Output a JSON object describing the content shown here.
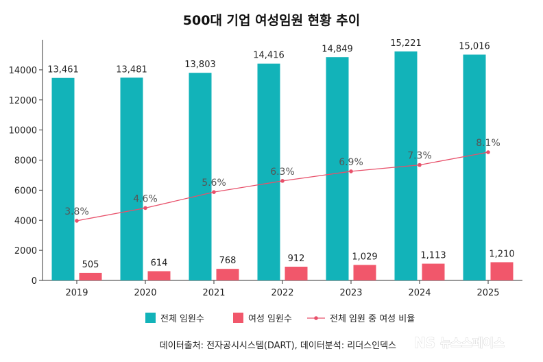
{
  "chart_data": {
    "type": "bar",
    "title": "500대 기업 여성임원 현황 추이",
    "categories": [
      "2019",
      "2020",
      "2021",
      "2022",
      "2023",
      "2024",
      "2025"
    ],
    "series": [
      {
        "name": "전체 임원수",
        "type": "bar",
        "color": "#12b3b9",
        "values": [
          13461,
          13481,
          13803,
          14416,
          14849,
          15221,
          15016
        ],
        "labels": [
          "13,461",
          "13,481",
          "13,803",
          "14,416",
          "14,849",
          "15,221",
          "15,016"
        ]
      },
      {
        "name": "여성 임원수",
        "type": "bar",
        "color": "#f1576b",
        "values": [
          505,
          614,
          768,
          912,
          1029,
          1113,
          1210
        ],
        "labels": [
          "505",
          "614",
          "768",
          "912",
          "1,029",
          "1,113",
          "1,210"
        ]
      },
      {
        "name": "전체 임원 중 여성 비율",
        "type": "line",
        "color": "#e8506a",
        "values": [
          3.8,
          4.6,
          5.6,
          6.3,
          6.9,
          7.3,
          8.1
        ],
        "labels": [
          "3.8%",
          "4.6%",
          "5.6%",
          "6.3%",
          "6.9%",
          "7.3%",
          "8.1%"
        ]
      }
    ],
    "yticks": [
      "0",
      "2000",
      "4000",
      "6000",
      "8000",
      "10000",
      "12000",
      "14000"
    ],
    "ylim": [
      0,
      16000
    ],
    "xlabel": "",
    "ylabel": "",
    "legend_position": "bottom",
    "grid": false
  },
  "source": "데이터출처: 전자공시시스템(DART), 데이터분석: 리더스인덱스",
  "watermark": {
    "logo": "NS",
    "text": "뉴스스페이스"
  }
}
